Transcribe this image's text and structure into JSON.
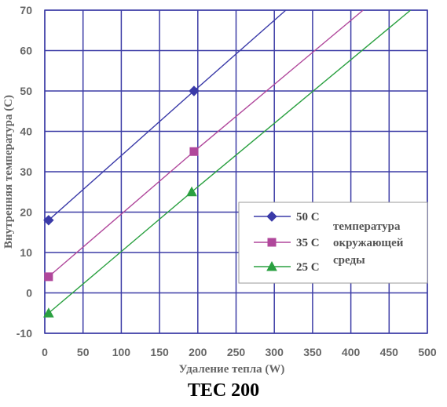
{
  "caption": "TEC 200",
  "chart_data": {
    "type": "line",
    "title": "",
    "xlabel": "Удаление тепла (W)",
    "ylabel": "Внутренняя температура (С)",
    "xlim": [
      0,
      500
    ],
    "ylim": [
      -10,
      70
    ],
    "xticks": [
      0,
      50,
      100,
      150,
      200,
      250,
      300,
      350,
      400,
      450,
      500
    ],
    "yticks": [
      -10,
      0,
      10,
      20,
      30,
      40,
      50,
      60,
      70
    ],
    "xtick_labels": [
      "0",
      "50",
      "100",
      "150",
      "200",
      "250",
      "300",
      "350",
      "400",
      "450",
      "500"
    ],
    "ytick_labels": [
      "-10",
      "0",
      "10",
      "20",
      "30",
      "40",
      "50",
      "60",
      "70"
    ],
    "grid": true,
    "legend": {
      "placement": "right",
      "title_lines": [
        "температура",
        "окружающей",
        "среды"
      ]
    },
    "series": [
      {
        "name": "50 С",
        "color": "#3a3aa8",
        "marker": "diamond",
        "x": [
          5,
          195,
          315
        ],
        "y": [
          18,
          50,
          70
        ],
        "marker_x": [
          5,
          195
        ],
        "marker_y": [
          18,
          50
        ]
      },
      {
        "name": "35 С",
        "color": "#b0479b",
        "marker": "square",
        "x": [
          5,
          195,
          416
        ],
        "y": [
          4,
          35,
          70
        ],
        "marker_x": [
          5,
          195
        ],
        "marker_y": [
          4,
          35
        ]
      },
      {
        "name": "25 С",
        "color": "#2aa040",
        "marker": "triangle",
        "x": [
          5,
          192,
          478
        ],
        "y": [
          -5,
          25,
          70
        ],
        "marker_x": [
          5,
          192
        ],
        "marker_y": [
          -5,
          25
        ]
      }
    ]
  }
}
